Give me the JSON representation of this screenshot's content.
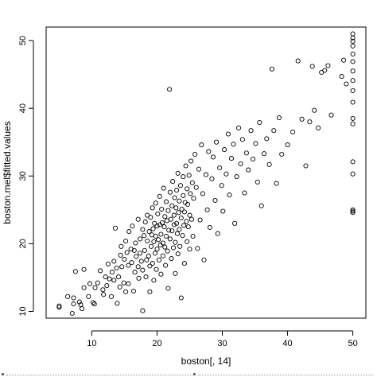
{
  "chart_data": {
    "type": "scatter",
    "title": "",
    "xlabel": "boston[, 14]",
    "ylabel": "boston.mel$fitted.values",
    "xlim": [
      3,
      52
    ],
    "ylim": [
      9,
      52
    ],
    "xticks": [
      10,
      20,
      30,
      40,
      50
    ],
    "yticks": [
      10,
      20,
      30,
      40,
      50
    ],
    "grid": false,
    "legend": "none",
    "marker": "open-circle",
    "marker_color": "#000000",
    "points": [
      [
        5.0,
        10.6
      ],
      [
        5.0,
        10.8
      ],
      [
        6.3,
        12.2
      ],
      [
        7.0,
        9.7
      ],
      [
        7.2,
        11.1
      ],
      [
        7.2,
        12.0
      ],
      [
        7.5,
        15.9
      ],
      [
        8.1,
        11.4
      ],
      [
        8.3,
        11.0
      ],
      [
        8.5,
        10.4
      ],
      [
        8.8,
        13.5
      ],
      [
        8.8,
        16.2
      ],
      [
        9.5,
        12.2
      ],
      [
        9.7,
        14.1
      ],
      [
        10.2,
        11.3
      ],
      [
        10.4,
        11.1
      ],
      [
        10.5,
        13.5
      ],
      [
        10.9,
        14.2
      ],
      [
        11.3,
        16.0
      ],
      [
        11.7,
        13.2
      ],
      [
        11.8,
        12.5
      ],
      [
        12.1,
        15.1
      ],
      [
        12.3,
        13.8
      ],
      [
        12.5,
        17.0
      ],
      [
        12.7,
        14.8
      ],
      [
        13.0,
        12.2
      ],
      [
        13.1,
        15.8
      ],
      [
        13.4,
        14.6
      ],
      [
        13.4,
        17.4
      ],
      [
        13.6,
        22.3
      ],
      [
        13.8,
        16.4
      ],
      [
        13.9,
        11.2
      ],
      [
        14.1,
        15.1
      ],
      [
        14.3,
        13.6
      ],
      [
        14.4,
        18.3
      ],
      [
        14.5,
        19.6
      ],
      [
        14.6,
        16.6
      ],
      [
        14.9,
        14.2
      ],
      [
        15.0,
        17.7
      ],
      [
        15.2,
        12.9
      ],
      [
        15.2,
        20.4
      ],
      [
        15.4,
        18.7
      ],
      [
        15.6,
        14.1
      ],
      [
        15.6,
        16.8
      ],
      [
        15.7,
        21.8
      ],
      [
        16.0,
        19.2
      ],
      [
        16.1,
        17.2
      ],
      [
        16.2,
        22.6
      ],
      [
        16.4,
        13.0
      ],
      [
        16.5,
        19.0
      ],
      [
        16.6,
        15.8
      ],
      [
        16.7,
        20.1
      ],
      [
        16.8,
        18.1
      ],
      [
        17.1,
        23.6
      ],
      [
        17.1,
        16.6
      ],
      [
        17.2,
        14.9
      ],
      [
        17.4,
        20.7
      ],
      [
        17.4,
        18.6
      ],
      [
        17.6,
        17.4
      ],
      [
        17.8,
        22.1
      ],
      [
        17.8,
        16.1
      ],
      [
        17.8,
        10.1
      ],
      [
        18.0,
        21.2
      ],
      [
        18.1,
        19.0
      ],
      [
        18.2,
        23.2
      ],
      [
        18.3,
        15.1
      ],
      [
        18.4,
        17.6
      ],
      [
        18.5,
        20.4
      ],
      [
        18.5,
        24.2
      ],
      [
        18.7,
        18.2
      ],
      [
        18.8,
        21.8
      ],
      [
        18.9,
        12.9
      ],
      [
        18.9,
        16.7
      ],
      [
        19.0,
        23.9
      ],
      [
        19.1,
        19.6
      ],
      [
        19.2,
        21.3
      ],
      [
        19.3,
        17.1
      ],
      [
        19.3,
        25.3
      ],
      [
        19.4,
        22.2
      ],
      [
        19.5,
        20.3
      ],
      [
        19.5,
        14.6
      ],
      [
        19.6,
        23.0
      ],
      [
        19.7,
        18.6
      ],
      [
        19.8,
        21.1
      ],
      [
        19.8,
        26.0
      ],
      [
        19.9,
        16.2
      ],
      [
        20.0,
        22.6
      ],
      [
        20.0,
        19.2
      ],
      [
        20.1,
        24.4
      ],
      [
        20.2,
        20.6
      ],
      [
        20.3,
        17.6
      ],
      [
        20.4,
        27.0
      ],
      [
        20.4,
        22.8
      ],
      [
        20.5,
        19.8
      ],
      [
        20.6,
        15.5
      ],
      [
        20.6,
        21.4
      ],
      [
        20.7,
        25.1
      ],
      [
        20.8,
        23.1
      ],
      [
        20.9,
        18.2
      ],
      [
        20.9,
        20.1
      ],
      [
        21.0,
        28.2
      ],
      [
        21.1,
        22.5
      ],
      [
        21.2,
        24.0
      ],
      [
        21.2,
        19.5
      ],
      [
        21.3,
        16.8
      ],
      [
        21.4,
        26.2
      ],
      [
        21.4,
        21.1
      ],
      [
        21.5,
        23.4
      ],
      [
        21.6,
        18.9
      ],
      [
        21.7,
        24.9
      ],
      [
        21.7,
        13.4
      ],
      [
        21.8,
        22.0
      ],
      [
        21.9,
        42.8
      ],
      [
        22.0,
        20.7
      ],
      [
        22.0,
        27.6
      ],
      [
        22.1,
        23.6
      ],
      [
        22.2,
        17.8
      ],
      [
        22.3,
        25.6
      ],
      [
        22.3,
        21.9
      ],
      [
        22.4,
        29.2
      ],
      [
        22.5,
        19.4
      ],
      [
        22.6,
        24.2
      ],
      [
        22.6,
        22.8
      ],
      [
        22.7,
        26.8
      ],
      [
        22.8,
        20.2
      ],
      [
        22.8,
        15.6
      ],
      [
        22.9,
        25.3
      ],
      [
        23.0,
        23.0
      ],
      [
        23.0,
        27.9
      ],
      [
        23.1,
        21.5
      ],
      [
        23.2,
        30.4
      ],
      [
        23.2,
        18.5
      ],
      [
        23.3,
        24.6
      ],
      [
        23.4,
        22.1
      ],
      [
        23.4,
        26.3
      ],
      [
        23.5,
        19.6
      ],
      [
        23.6,
        28.6
      ],
      [
        23.7,
        23.8
      ],
      [
        23.7,
        12.0
      ],
      [
        23.8,
        25.1
      ],
      [
        23.9,
        21.2
      ],
      [
        24.0,
        29.9
      ],
      [
        24.0,
        27.1
      ],
      [
        24.1,
        22.7
      ],
      [
        24.2,
        24.7
      ],
      [
        24.2,
        17.1
      ],
      [
        24.3,
        26.1
      ],
      [
        24.4,
        31.5
      ],
      [
        24.5,
        23.3
      ],
      [
        24.6,
        28.1
      ],
      [
        24.6,
        20.3
      ],
      [
        24.7,
        25.8
      ],
      [
        24.8,
        22.5
      ],
      [
        24.9,
        30.1
      ],
      [
        25.0,
        24.2
      ],
      [
        25.0,
        19.2
      ],
      [
        25.1,
        27.4
      ],
      [
        25.2,
        32.2
      ],
      [
        25.3,
        23.6
      ],
      [
        25.4,
        29.0
      ],
      [
        25.5,
        21.1
      ],
      [
        25.6,
        26.7
      ],
      [
        25.8,
        33.2
      ],
      [
        26.0,
        28.3
      ],
      [
        26.2,
        19.3
      ],
      [
        26.4,
        31.0
      ],
      [
        26.6,
        23.5
      ],
      [
        26.8,
        34.6
      ],
      [
        27.0,
        27.4
      ],
      [
        27.2,
        17.6
      ],
      [
        27.5,
        30.2
      ],
      [
        27.7,
        25.0
      ],
      [
        27.9,
        33.6
      ],
      [
        28.1,
        22.4
      ],
      [
        28.4,
        29.6
      ],
      [
        28.6,
        32.8
      ],
      [
        28.9,
        26.4
      ],
      [
        29.1,
        35.0
      ],
      [
        29.3,
        21.5
      ],
      [
        29.6,
        31.2
      ],
      [
        29.9,
        28.6
      ],
      [
        30.1,
        24.8
      ],
      [
        30.3,
        33.9
      ],
      [
        30.6,
        30.3
      ],
      [
        30.9,
        36.2
      ],
      [
        31.1,
        27.2
      ],
      [
        31.4,
        32.6
      ],
      [
        31.7,
        34.7
      ],
      [
        31.9,
        23.0
      ],
      [
        32.2,
        29.9
      ],
      [
        32.5,
        37.1
      ],
      [
        32.8,
        31.8
      ],
      [
        33.1,
        35.4
      ],
      [
        33.4,
        27.5
      ],
      [
        33.7,
        33.4
      ],
      [
        34.0,
        30.9
      ],
      [
        34.4,
        36.7
      ],
      [
        34.7,
        32.5
      ],
      [
        35.1,
        34.8
      ],
      [
        35.4,
        29.1
      ],
      [
        35.7,
        37.9
      ],
      [
        36.0,
        25.6
      ],
      [
        36.4,
        33.3
      ],
      [
        36.8,
        35.5
      ],
      [
        37.2,
        31.7
      ],
      [
        37.6,
        45.8
      ],
      [
        37.9,
        36.7
      ],
      [
        38.3,
        28.9
      ],
      [
        38.7,
        38.6
      ],
      [
        39.1,
        33.2
      ],
      [
        40.0,
        34.6
      ],
      [
        40.8,
        36.5
      ],
      [
        41.6,
        47.0
      ],
      [
        42.2,
        38.4
      ],
      [
        42.8,
        31.5
      ],
      [
        43.4,
        38.0
      ],
      [
        43.8,
        46.2
      ],
      [
        44.1,
        39.7
      ],
      [
        44.7,
        37.1
      ],
      [
        45.2,
        45.3
      ],
      [
        45.7,
        45.6
      ],
      [
        46.2,
        46.3
      ],
      [
        46.7,
        39.0
      ],
      [
        48.3,
        44.7
      ],
      [
        48.6,
        47.1
      ],
      [
        49.0,
        43.6
      ],
      [
        50.0,
        51.0
      ],
      [
        50.0,
        50.4
      ],
      [
        50.0,
        49.9
      ],
      [
        50.0,
        49.2
      ],
      [
        50.0,
        48.0
      ],
      [
        50.0,
        46.9
      ],
      [
        50.0,
        45.5
      ],
      [
        50.0,
        44.1
      ],
      [
        50.0,
        42.6
      ],
      [
        50.0,
        40.9
      ],
      [
        50.0,
        38.5
      ],
      [
        50.0,
        37.7
      ],
      [
        50.0,
        32.1
      ],
      [
        50.0,
        30.3
      ],
      [
        50.0,
        25.0
      ],
      [
        50.0,
        24.8
      ],
      [
        50.0,
        24.6
      ]
    ]
  }
}
